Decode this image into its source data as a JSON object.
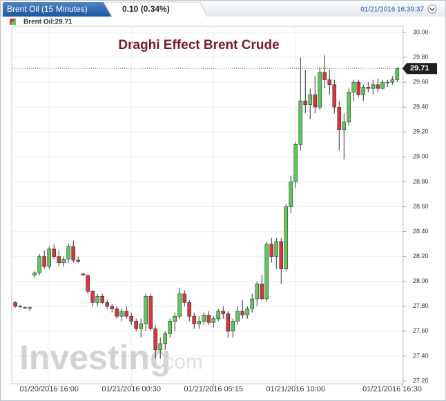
{
  "header": {
    "tab": "Brent Oil (15 Minutes)",
    "change": "0.10 (0.34%)",
    "timestamp": "01/21/2016 16:39:37"
  },
  "chart_data": {
    "type": "candlestick",
    "title": "Draghi Effect Brent Crude",
    "legend": "Brent Oil:29.71",
    "watermark": [
      "Investing",
      ".com"
    ],
    "up_color": "#5cc85c",
    "down_color": "#d8363c",
    "grid": true,
    "open": [
      27.83,
      27.8,
      27.79,
      27.79,
      28.05,
      28.07,
      28.2,
      28.12,
      28.26,
      28.2,
      28.15,
      28.18,
      28.28,
      28.17,
      28.06,
      28.05,
      27.92,
      27.83,
      27.88,
      27.83,
      27.8,
      27.78,
      27.72,
      27.76,
      27.72,
      27.68,
      27.62,
      27.66,
      27.88,
      27.62,
      27.45,
      27.5,
      27.58,
      27.68,
      27.72,
      27.9,
      27.83,
      27.72,
      27.66,
      27.68,
      27.73,
      27.67,
      27.7,
      27.76,
      27.74,
      27.6,
      27.68,
      27.76,
      27.73,
      27.78,
      27.86,
      27.98,
      27.86,
      28.3,
      28.2,
      28.32,
      28.1,
      28.6,
      28.8,
      29.1,
      29.45,
      29.42,
      29.5,
      29.4,
      29.68,
      29.62,
      29.58,
      29.4,
      29.22,
      29.28,
      29.52,
      29.6,
      29.5,
      29.56,
      29.55,
      29.58,
      29.55,
      29.6,
      29.6,
      29.62
    ],
    "high": [
      27.84,
      27.81,
      27.8,
      27.8,
      28.08,
      28.22,
      28.25,
      28.28,
      28.3,
      28.25,
      28.2,
      28.3,
      28.33,
      28.2,
      28.07,
      28.05,
      27.93,
      27.9,
      27.9,
      27.85,
      27.82,
      27.8,
      27.78,
      27.8,
      27.75,
      27.7,
      27.7,
      27.9,
      27.9,
      27.65,
      27.55,
      27.6,
      27.7,
      27.75,
      27.95,
      27.93,
      27.85,
      27.75,
      27.72,
      27.75,
      27.76,
      27.72,
      27.78,
      27.8,
      27.76,
      27.7,
      27.8,
      27.85,
      27.8,
      27.9,
      28.0,
      28.05,
      28.32,
      28.35,
      28.35,
      28.35,
      28.62,
      28.85,
      29.12,
      29.8,
      29.7,
      29.55,
      29.65,
      29.72,
      29.82,
      29.7,
      29.62,
      29.45,
      29.35,
      29.55,
      29.62,
      29.62,
      29.58,
      29.6,
      29.62,
      29.63,
      29.62,
      29.62,
      29.65,
      29.72
    ],
    "low": [
      27.79,
      27.79,
      27.78,
      27.76,
      28.03,
      28.05,
      28.1,
      28.1,
      28.18,
      28.12,
      28.12,
      28.15,
      28.15,
      28.15,
      28.05,
      27.9,
      27.8,
      27.8,
      27.82,
      27.78,
      27.75,
      27.7,
      27.68,
      27.7,
      27.65,
      27.6,
      27.55,
      27.6,
      27.6,
      27.38,
      27.38,
      27.45,
      27.55,
      27.6,
      27.7,
      27.8,
      27.68,
      27.62,
      27.62,
      27.65,
      27.65,
      27.63,
      27.68,
      27.7,
      27.55,
      27.55,
      27.65,
      27.7,
      27.7,
      27.75,
      27.8,
      27.85,
      27.84,
      28.15,
      28.1,
      27.98,
      28.08,
      28.55,
      28.75,
      29.05,
      29.35,
      29.3,
      29.35,
      29.38,
      29.55,
      29.5,
      29.35,
      29.05,
      28.98,
      29.25,
      29.45,
      29.48,
      29.45,
      29.52,
      29.5,
      29.52,
      29.54,
      29.56,
      29.58,
      29.6
    ],
    "close": [
      27.8,
      27.8,
      27.79,
      27.79,
      28.07,
      28.2,
      28.12,
      28.26,
      28.2,
      28.15,
      28.18,
      28.28,
      28.17,
      28.16,
      28.05,
      27.92,
      27.83,
      27.88,
      27.83,
      27.8,
      27.78,
      27.72,
      27.76,
      27.72,
      27.68,
      27.62,
      27.66,
      27.88,
      27.62,
      27.45,
      27.5,
      27.58,
      27.68,
      27.72,
      27.9,
      27.83,
      27.72,
      27.66,
      27.68,
      27.73,
      27.67,
      27.7,
      27.76,
      27.74,
      27.6,
      27.68,
      27.76,
      27.73,
      27.78,
      27.86,
      27.98,
      27.86,
      28.3,
      28.2,
      28.32,
      28.1,
      28.6,
      28.8,
      29.1,
      29.45,
      29.42,
      29.5,
      29.4,
      29.68,
      29.62,
      29.58,
      29.4,
      29.22,
      29.28,
      29.52,
      29.6,
      29.5,
      29.56,
      29.55,
      29.58,
      29.55,
      29.6,
      29.6,
      29.62,
      29.71
    ],
    "xlim": [
      -0.6,
      80.1
    ],
    "xticks": [
      {
        "value": 7,
        "label": "01/20/2016 16:00"
      },
      {
        "value": 24,
        "label": "01/21/2016 00:30"
      },
      {
        "value": 41,
        "label": "01/21/2016 05:15"
      },
      {
        "value": 58,
        "label": "01/21/2016 10:00"
      },
      {
        "value": 80,
        "label": "01/21/2016 16:30"
      }
    ],
    "ylim": [
      27.2,
      30.0
    ],
    "yticks": [
      {
        "value": 27.2,
        "label": "27.20"
      },
      {
        "value": 27.4,
        "label": "27.40"
      },
      {
        "value": 27.6,
        "label": "27.60"
      },
      {
        "value": 27.8,
        "label": "27.80"
      },
      {
        "value": 28.0,
        "label": "28.00"
      },
      {
        "value": 28.2,
        "label": "28.20"
      },
      {
        "value": 28.4,
        "label": "28.40"
      },
      {
        "value": 28.6,
        "label": "28.60"
      },
      {
        "value": 28.8,
        "label": "28.80"
      },
      {
        "value": 29.0,
        "label": "29.00"
      },
      {
        "value": 29.2,
        "label": "29.20"
      },
      {
        "value": 29.4,
        "label": "29.40"
      },
      {
        "value": 29.6,
        "label": "29.60"
      },
      {
        "value": 29.8,
        "label": "29.80"
      },
      {
        "value": 30.0,
        "label": "30.00"
      }
    ]
  }
}
